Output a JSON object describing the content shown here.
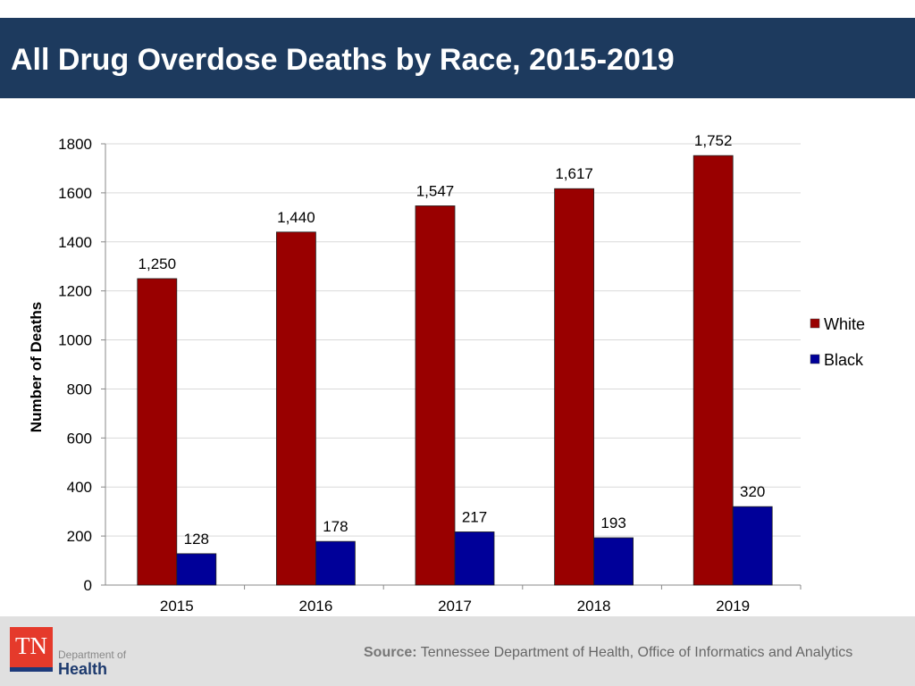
{
  "header": {
    "title": "All Drug Overdose Deaths by Race, 2015-2019"
  },
  "chart_data": {
    "type": "bar",
    "title": "",
    "xlabel": "",
    "ylabel": "Number of Deaths",
    "categories": [
      "2015",
      "2016",
      "2017",
      "2018",
      "2019"
    ],
    "ylim": [
      0,
      1800
    ],
    "yticks": [
      "0",
      "200",
      "400",
      "600",
      "800",
      "1000",
      "1200",
      "1400",
      "1600",
      "1800"
    ],
    "grid": true,
    "legend": "right",
    "series": [
      {
        "name": "White",
        "color": "#990000",
        "values": [
          1250,
          1440,
          1547,
          1617,
          1752
        ],
        "labels": [
          "1,250",
          "1,440",
          "1,547",
          "1,617",
          "1,752"
        ]
      },
      {
        "name": "Black",
        "color": "#000099",
        "values": [
          128,
          178,
          217,
          193,
          320
        ],
        "labels": [
          "128",
          "178",
          "217",
          "193",
          "320"
        ]
      }
    ]
  },
  "footer": {
    "logo_text": "TN",
    "dept_label": "Department of",
    "health_label": "Health",
    "source_label": "Source:",
    "source_text": "Tennessee Department of Health, Office of Informatics and Analytics"
  }
}
